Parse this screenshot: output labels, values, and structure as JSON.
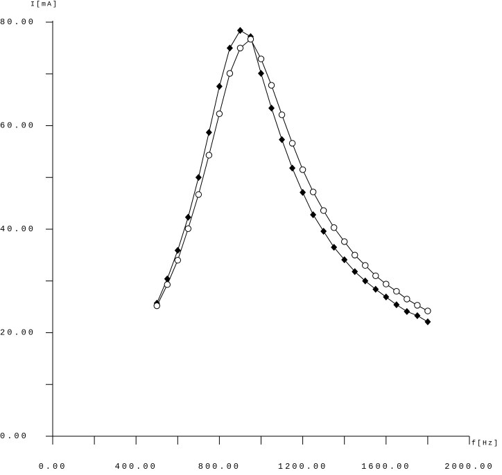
{
  "chart_data": {
    "type": "line",
    "y_label": "I[mA]",
    "x_label": "f[Hz]",
    "xlim": [
      0,
      2000
    ],
    "ylim": [
      0,
      80
    ],
    "xticks": [
      {
        "value": 0,
        "label": "0.00"
      },
      {
        "value": 400,
        "label": "400.00"
      },
      {
        "value": 800,
        "label": "800.00"
      },
      {
        "value": 1200,
        "label": "1200.00"
      },
      {
        "value": 1600,
        "label": "1600.00"
      },
      {
        "value": 2000,
        "label": "2000.00"
      }
    ],
    "yticks": [
      {
        "value": 0,
        "label": "0.00"
      },
      {
        "value": 20,
        "label": "20.00"
      },
      {
        "value": 40,
        "label": "40.00"
      },
      {
        "value": 60,
        "label": "60.00"
      },
      {
        "value": 80,
        "label": "80.00"
      }
    ],
    "x": [
      500,
      550,
      600,
      650,
      700,
      750,
      800,
      850,
      900,
      950,
      1000,
      1050,
      1100,
      1150,
      1200,
      1250,
      1300,
      1350,
      1400,
      1450,
      1500,
      1550,
      1600,
      1650,
      1700,
      1750,
      1800
    ],
    "series": [
      {
        "color": "#000000",
        "marker": "diamond",
        "values": [
          25.7,
          30.4,
          35.9,
          42.3,
          50.0,
          58.7,
          67.6,
          75.0,
          78.4,
          77.2,
          70.1,
          63.4,
          57.3,
          51.8,
          47.1,
          42.8,
          39.6,
          36.5,
          34.1,
          31.8,
          30.0,
          28.4,
          26.9,
          25.4,
          24.1,
          23.3,
          22.1
        ]
      },
      {
        "color": "#000000",
        "marker": "circle",
        "values": [
          25.2,
          29.3,
          34.0,
          40.1,
          46.7,
          54.3,
          62.3,
          70.1,
          75.0,
          76.7,
          72.9,
          67.8,
          62.1,
          56.6,
          51.5,
          47.2,
          43.6,
          40.3,
          37.6,
          35.0,
          33.0,
          31.0,
          29.4,
          28.0,
          26.5,
          25.3,
          24.2
        ]
      }
    ]
  }
}
